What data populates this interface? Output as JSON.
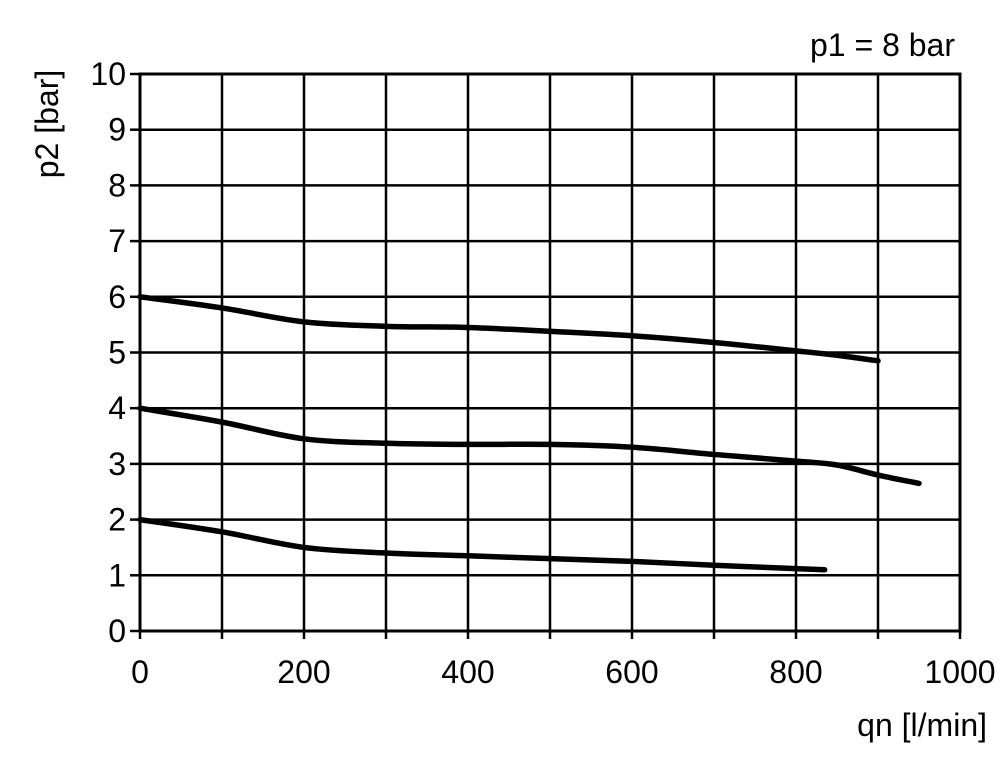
{
  "chart_data": {
    "type": "line",
    "title": "",
    "annotation": "p1 = 8 bar",
    "xlabel": "qn [l/min]",
    "ylabel": "p2 [bar]",
    "xlim": [
      0,
      1000
    ],
    "ylim": [
      0,
      10
    ],
    "x_ticks": [
      0,
      100,
      200,
      300,
      400,
      500,
      600,
      700,
      800,
      900,
      1000
    ],
    "x_tick_labels": [
      "0",
      "200",
      "400",
      "600",
      "800",
      "1000"
    ],
    "x_tick_label_values": [
      0,
      200,
      400,
      600,
      800,
      1000
    ],
    "y_ticks": [
      0,
      1,
      2,
      3,
      4,
      5,
      6,
      7,
      8,
      9,
      10
    ],
    "y_tick_labels": [
      "0",
      "1",
      "2",
      "3",
      "4",
      "5",
      "6",
      "7",
      "8",
      "9",
      "10"
    ],
    "grid": true,
    "legend": "none",
    "colors": {
      "line": "#000000",
      "grid": "#000000",
      "background": "#ffffff"
    },
    "series": [
      {
        "x": [
          0,
          100,
          200,
          300,
          400,
          500,
          600,
          700,
          800,
          850,
          900
        ],
        "y": [
          6.0,
          5.8,
          5.55,
          5.47,
          5.45,
          5.38,
          5.3,
          5.18,
          5.03,
          4.95,
          4.85
        ]
      },
      {
        "x": [
          0,
          100,
          200,
          300,
          400,
          500,
          600,
          700,
          800,
          850,
          900,
          950
        ],
        "y": [
          4.0,
          3.75,
          3.45,
          3.37,
          3.35,
          3.35,
          3.3,
          3.17,
          3.05,
          2.98,
          2.8,
          2.65
        ]
      },
      {
        "x": [
          0,
          100,
          200,
          300,
          400,
          500,
          600,
          700,
          800,
          835
        ],
        "y": [
          2.0,
          1.78,
          1.5,
          1.4,
          1.35,
          1.3,
          1.25,
          1.18,
          1.12,
          1.1
        ]
      }
    ]
  }
}
